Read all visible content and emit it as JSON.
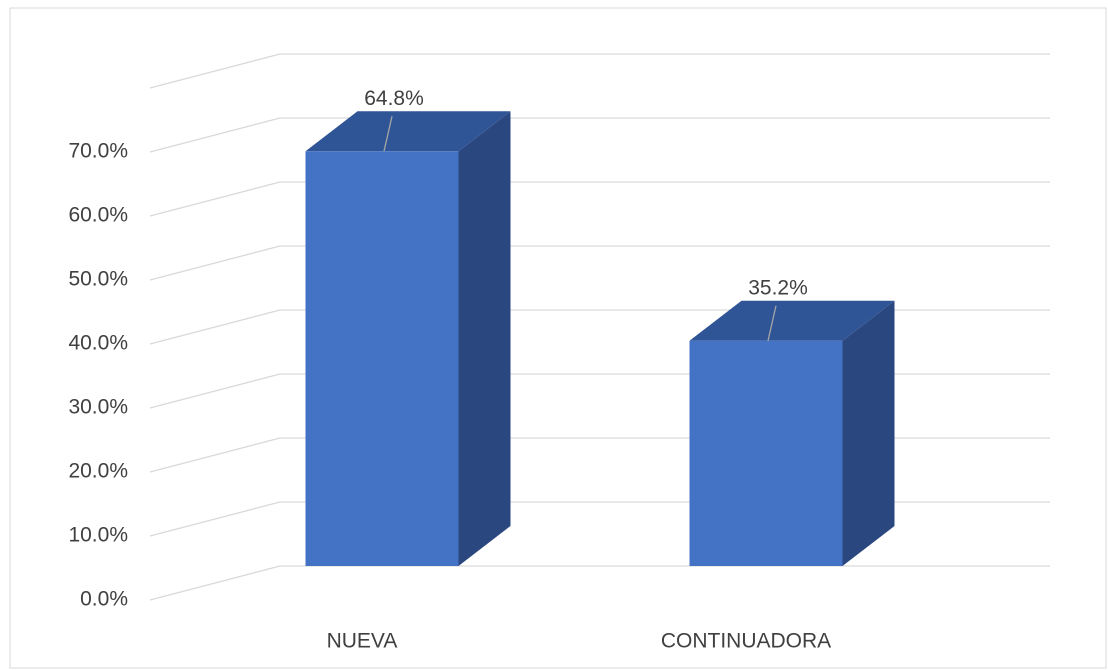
{
  "chart_data": {
    "type": "bar3d",
    "categories": [
      "NUEVA",
      "CONTINUADORA"
    ],
    "values": [
      64.8,
      35.2
    ],
    "value_labels": [
      "64.8%",
      "35.2%"
    ],
    "color": "#4472c4",
    "ylim": [
      0,
      80
    ],
    "yticks": [
      {
        "value": 0,
        "label": "0.0%"
      },
      {
        "value": 10,
        "label": "10.0%"
      },
      {
        "value": 20,
        "label": "20.0%"
      },
      {
        "value": 30,
        "label": "30.0%"
      },
      {
        "value": 40,
        "label": "40.0%"
      },
      {
        "value": 50,
        "label": "50.0%"
      },
      {
        "value": 60,
        "label": "60.0%"
      },
      {
        "value": 70,
        "label": "70.0%"
      }
    ],
    "grid": true
  }
}
